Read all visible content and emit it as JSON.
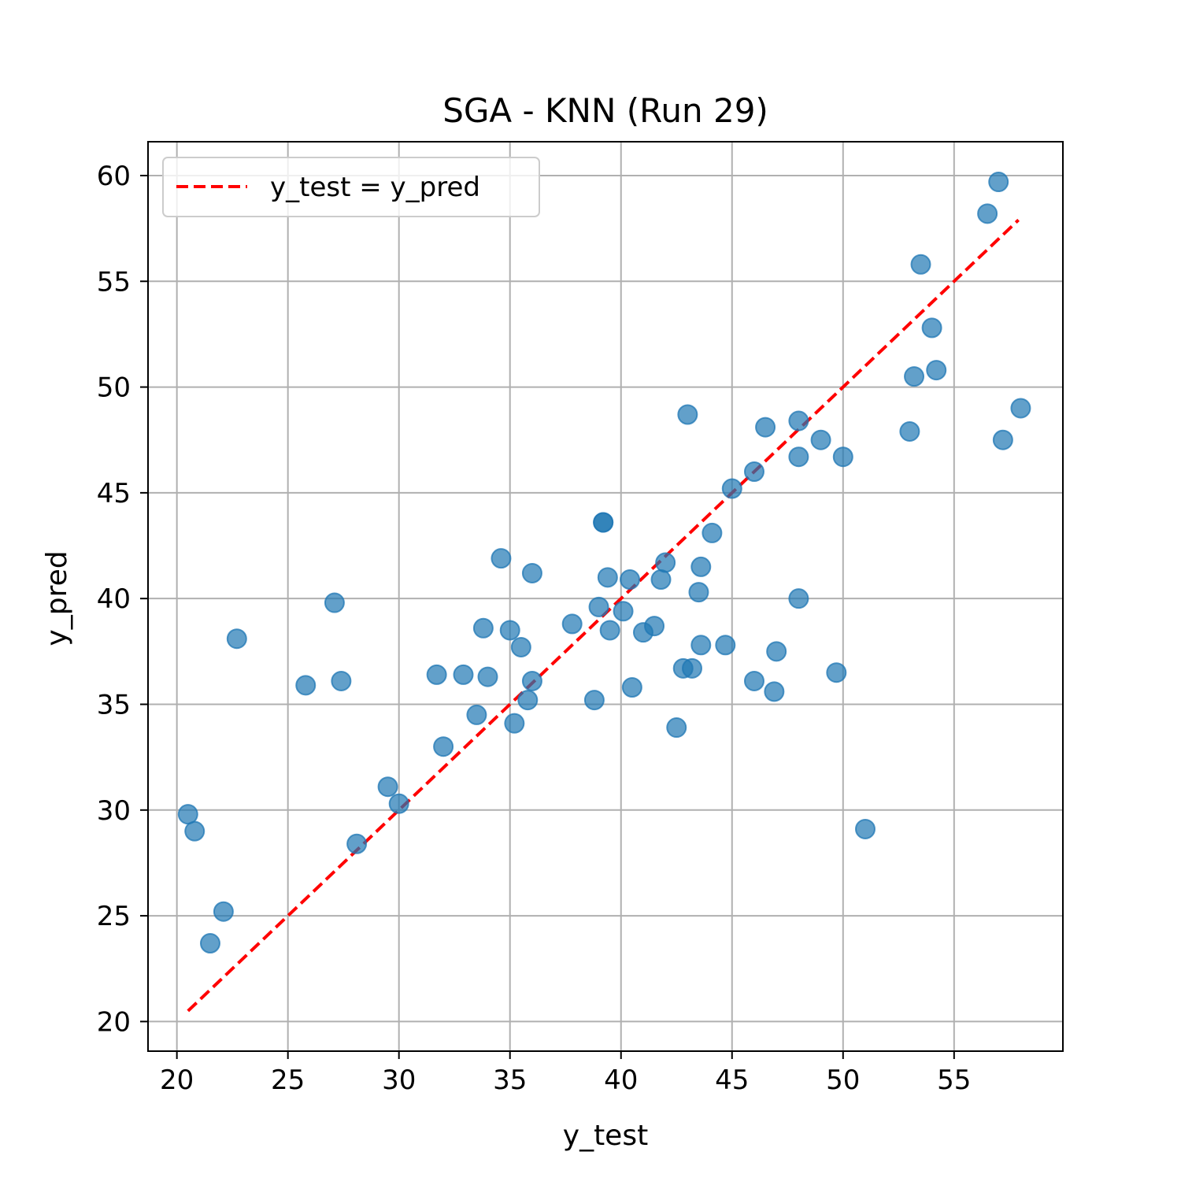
{
  "chart_data": {
    "type": "scatter",
    "title": "SGA - KNN (Run 29)",
    "xlabel": "y_test",
    "ylabel": "y_pred",
    "xlim": [
      18.7,
      59.9
    ],
    "ylim": [
      18.6,
      61.6
    ],
    "xticks": [
      20,
      25,
      30,
      35,
      40,
      45,
      50,
      55
    ],
    "yticks": [
      20,
      25,
      30,
      35,
      40,
      45,
      50,
      55,
      60
    ],
    "grid": true,
    "legend_position": "top-left",
    "reference_line": {
      "label": "y_test = y_pred",
      "color": "#ff0000",
      "style": "dashed",
      "x": [
        20.5,
        57.9
      ],
      "y": [
        20.5,
        57.9
      ]
    },
    "point_color": "#1f77b4",
    "points": [
      [
        20.5,
        29.8
      ],
      [
        20.8,
        29.0
      ],
      [
        21.5,
        23.7
      ],
      [
        22.1,
        25.2
      ],
      [
        22.7,
        38.1
      ],
      [
        25.8,
        35.9
      ],
      [
        27.1,
        39.8
      ],
      [
        27.4,
        36.1
      ],
      [
        28.1,
        28.4
      ],
      [
        29.5,
        31.1
      ],
      [
        30.0,
        30.3
      ],
      [
        31.7,
        36.4
      ],
      [
        32.0,
        33.0
      ],
      [
        32.9,
        36.4
      ],
      [
        33.5,
        34.5
      ],
      [
        33.8,
        38.6
      ],
      [
        34.0,
        36.3
      ],
      [
        34.6,
        41.9
      ],
      [
        35.0,
        38.5
      ],
      [
        35.2,
        34.1
      ],
      [
        35.5,
        37.7
      ],
      [
        35.8,
        35.2
      ],
      [
        36.0,
        41.2
      ],
      [
        36.0,
        36.1
      ],
      [
        37.8,
        38.8
      ],
      [
        38.8,
        35.2
      ],
      [
        39.0,
        39.6
      ],
      [
        39.2,
        43.6
      ],
      [
        39.2,
        43.6
      ],
      [
        39.4,
        41.0
      ],
      [
        39.5,
        38.5
      ],
      [
        40.1,
        39.4
      ],
      [
        40.4,
        40.9
      ],
      [
        40.5,
        35.8
      ],
      [
        41.0,
        38.4
      ],
      [
        41.5,
        38.7
      ],
      [
        41.8,
        40.9
      ],
      [
        42.0,
        41.7
      ],
      [
        42.5,
        33.9
      ],
      [
        42.8,
        36.7
      ],
      [
        43.0,
        48.7
      ],
      [
        43.2,
        36.7
      ],
      [
        43.5,
        40.3
      ],
      [
        43.6,
        41.5
      ],
      [
        43.6,
        37.8
      ],
      [
        44.1,
        43.1
      ],
      [
        44.7,
        37.8
      ],
      [
        45.0,
        45.2
      ],
      [
        46.0,
        36.1
      ],
      [
        46.0,
        46.0
      ],
      [
        46.5,
        48.1
      ],
      [
        46.9,
        35.6
      ],
      [
        47.0,
        37.5
      ],
      [
        48.0,
        48.4
      ],
      [
        48.0,
        46.7
      ],
      [
        48.0,
        40.0
      ],
      [
        49.0,
        47.5
      ],
      [
        49.7,
        36.5
      ],
      [
        50.0,
        46.7
      ],
      [
        51.0,
        29.1
      ],
      [
        53.0,
        47.9
      ],
      [
        53.2,
        50.5
      ],
      [
        53.5,
        55.8
      ],
      [
        54.0,
        52.8
      ],
      [
        54.2,
        50.8
      ],
      [
        56.5,
        58.2
      ],
      [
        57.0,
        59.7
      ],
      [
        57.2,
        47.5
      ],
      [
        58.0,
        49.0
      ]
    ]
  }
}
